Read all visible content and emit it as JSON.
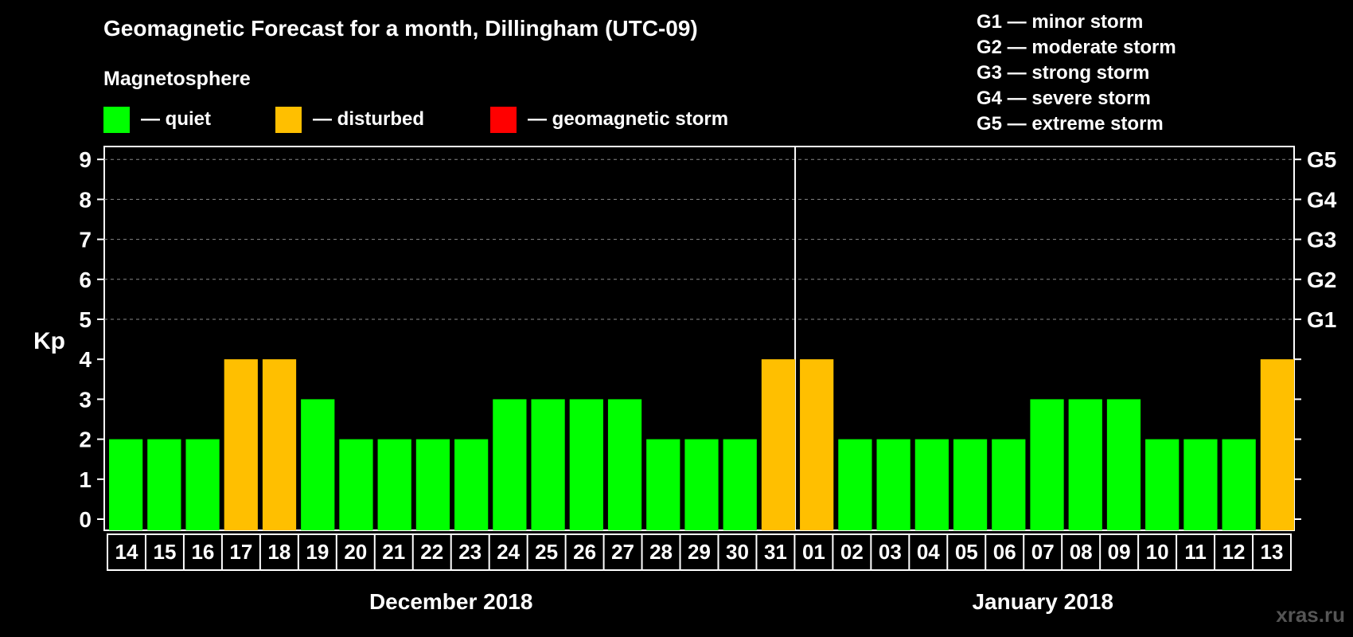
{
  "title": "Geomagnetic Forecast for a month, Dillingham (UTC-09)",
  "subtitle": "Magnetosphere",
  "legend": [
    {
      "label": "— quiet",
      "color": "#00ff00"
    },
    {
      "label": "— disturbed",
      "color": "#ffbf00"
    },
    {
      "label": "— geomagnetic storm",
      "color": "#ff0000"
    }
  ],
  "storm_levels": [
    "G1 — minor storm",
    "G2 — moderate storm",
    "G3 — strong storm",
    "G4 — severe storm",
    "G5 — extreme storm"
  ],
  "watermark": "xras.ru",
  "chart_data": {
    "type": "bar",
    "ylabel": "Kp",
    "ylim": [
      0,
      9
    ],
    "yticks": [
      0,
      1,
      2,
      3,
      4,
      5,
      6,
      7,
      8,
      9
    ],
    "right_ticks": [
      {
        "kp": 5,
        "label": "G1"
      },
      {
        "kp": 6,
        "label": "G2"
      },
      {
        "kp": 7,
        "label": "G3"
      },
      {
        "kp": 8,
        "label": "G4"
      },
      {
        "kp": 9,
        "label": "G5"
      }
    ],
    "grid": "dashed at Kp 5–9",
    "categories": [
      "14",
      "15",
      "16",
      "17",
      "18",
      "19",
      "20",
      "21",
      "22",
      "23",
      "24",
      "25",
      "26",
      "27",
      "28",
      "29",
      "30",
      "31",
      "01",
      "02",
      "03",
      "04",
      "05",
      "06",
      "07",
      "08",
      "09",
      "10",
      "11",
      "12",
      "13"
    ],
    "values": [
      2,
      2,
      2,
      4,
      4,
      3,
      2,
      2,
      2,
      2,
      3,
      3,
      3,
      3,
      2,
      2,
      2,
      4,
      4,
      2,
      2,
      2,
      2,
      2,
      3,
      3,
      3,
      2,
      2,
      2,
      4
    ],
    "status": [
      "quiet",
      "quiet",
      "quiet",
      "disturbed",
      "disturbed",
      "quiet",
      "quiet",
      "quiet",
      "quiet",
      "quiet",
      "quiet",
      "quiet",
      "quiet",
      "quiet",
      "quiet",
      "quiet",
      "quiet",
      "disturbed",
      "disturbed",
      "quiet",
      "quiet",
      "quiet",
      "quiet",
      "quiet",
      "quiet",
      "quiet",
      "quiet",
      "quiet",
      "quiet",
      "quiet",
      "disturbed"
    ],
    "colors": {
      "quiet": "#00ff00",
      "disturbed": "#ffbf00",
      "storm": "#ff0000"
    },
    "months": [
      {
        "label": "December 2018",
        "days": 18
      },
      {
        "label": "January 2018",
        "days": 13
      }
    ]
  }
}
